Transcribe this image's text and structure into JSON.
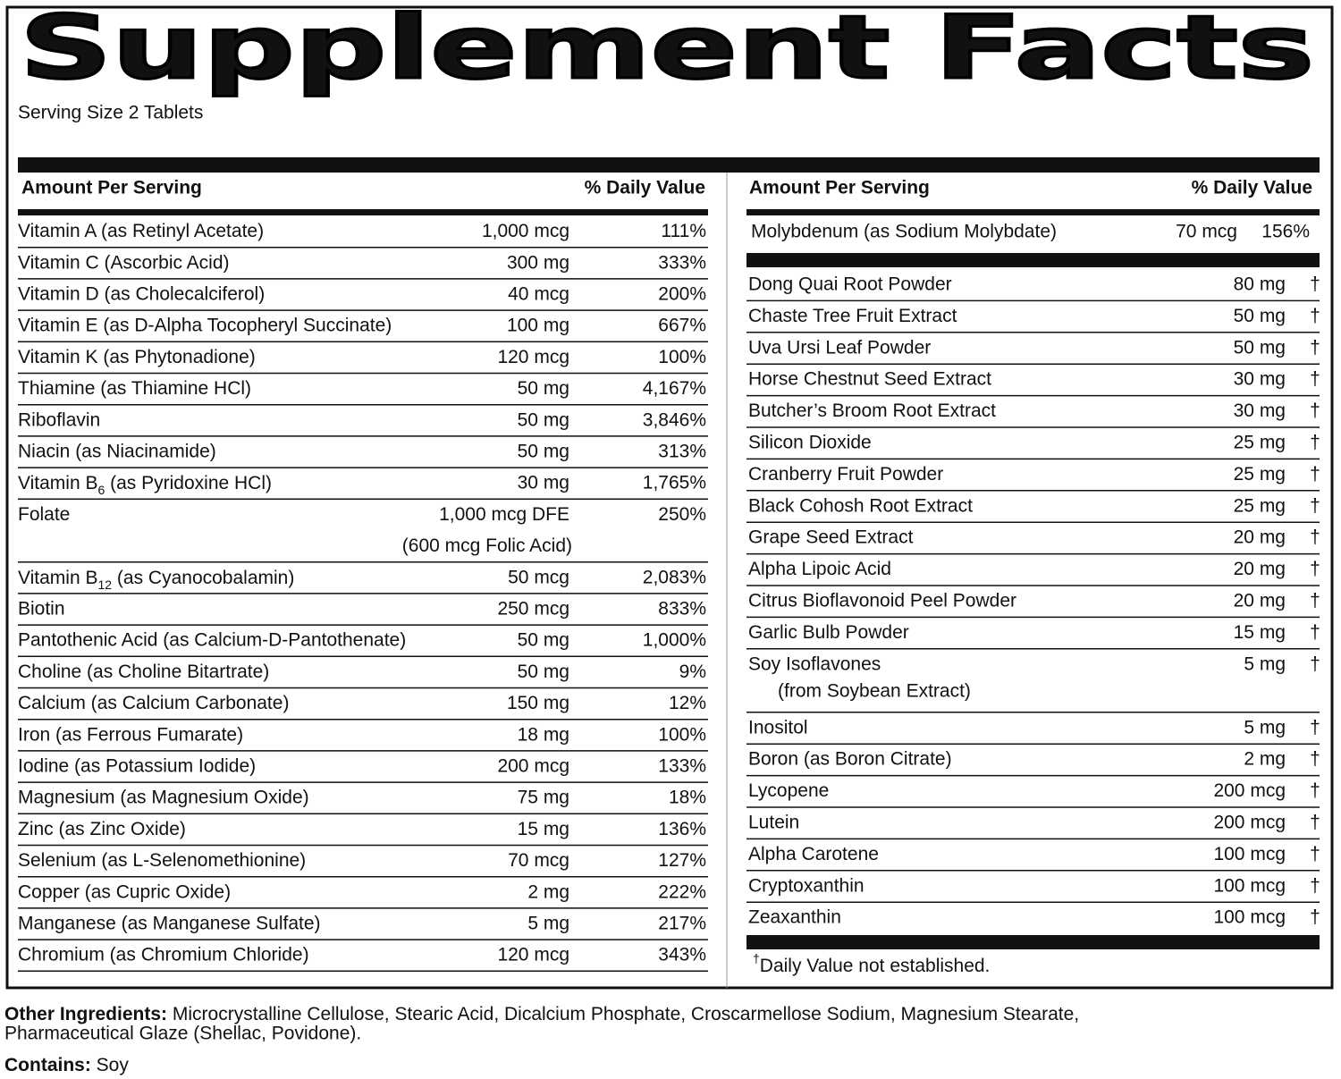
{
  "title": "Supplement Facts",
  "serving_size": "Serving Size 2 Tablets",
  "left": {
    "amount_header": "Amount Per Serving",
    "dv_header": "% Daily Value",
    "rows": [
      {
        "name": "Vitamin A (as Retinyl Acetate)",
        "amount": "1,000 mcg",
        "dv": "111%"
      },
      {
        "name": "Vitamin C (Ascorbic Acid)",
        "amount": "300 mg",
        "dv": "333%"
      },
      {
        "name": "Vitamin D (as Cholecalciferol)",
        "amount": "40 mcg",
        "dv": "200%"
      },
      {
        "name": "Vitamin E (as D-Alpha Tocopheryl Succinate)",
        "amount": "100 mg",
        "dv": "667%"
      },
      {
        "name": "Vitamin K (as Phytonadione)",
        "amount": "120 mcg",
        "dv": "100%"
      },
      {
        "name": "Thiamine (as Thiamine HCl)",
        "amount": "50 mg",
        "dv": "4,167%"
      },
      {
        "name": "Riboflavin",
        "amount": "50 mg",
        "dv": "3,846%"
      },
      {
        "name": "Niacin (as Niacinamide)",
        "amount": "50 mg",
        "dv": "313%"
      },
      {
        "name": [
          "Vitamin B",
          "6",
          " (as Pyridoxine HCl)"
        ],
        "amount": "30 mg",
        "dv": "1,765%"
      },
      {
        "name": "Folate",
        "amount": "1,000 mcg DFE",
        "dv": "250%",
        "note": "(600 mcg Folic Acid)"
      },
      {
        "name": [
          "Vitamin B",
          "12",
          " (as Cyanocobalamin)"
        ],
        "amount": "50 mcg",
        "dv": "2,083%"
      },
      {
        "name": "Biotin",
        "amount": "250 mcg",
        "dv": "833%"
      },
      {
        "name": "Pantothenic Acid (as Calcium-D-Pantothenate)",
        "amount": "50 mg",
        "dv": "1,000%"
      },
      {
        "name": "Choline (as Choline Bitartrate)",
        "amount": "50 mg",
        "dv": "9%"
      },
      {
        "name": "Calcium (as Calcium Carbonate)",
        "amount": "150 mg",
        "dv": "12%"
      },
      {
        "name": "Iron (as Ferrous Fumarate)",
        "amount": "18 mg",
        "dv": "100%"
      },
      {
        "name": "Iodine (as Potassium Iodide)",
        "amount": "200 mcg",
        "dv": "133%"
      },
      {
        "name": "Magnesium (as Magnesium Oxide)",
        "amount": "75 mg",
        "dv": "18%"
      },
      {
        "name": "Zinc (as Zinc Oxide)",
        "amount": "15 mg",
        "dv": "136%"
      },
      {
        "name": "Selenium (as L-Selenomethionine)",
        "amount": "70 mcg",
        "dv": "127%"
      },
      {
        "name": "Copper (as Cupric Oxide)",
        "amount": "2 mg",
        "dv": "222%"
      },
      {
        "name": "Manganese (as Manganese Sulfate)",
        "amount": "5 mg",
        "dv": "217%"
      },
      {
        "name": "Chromium (as Chromium Chloride)",
        "amount": "120 mcg",
        "dv": "343%"
      }
    ]
  },
  "right": {
    "amount_header": "Amount Per Serving",
    "dv_header": "% Daily Value",
    "top_rows": [
      {
        "name": "Molybdenum (as Sodium Molybdate)",
        "amount": "70 mcg",
        "dv": "156%"
      }
    ],
    "rows": [
      {
        "name": "Dong Quai Root Powder",
        "amount": "80 mg",
        "mark": "†"
      },
      {
        "name": "Chaste Tree Fruit Extract",
        "amount": "50 mg",
        "mark": "†"
      },
      {
        "name": "Uva Ursi Leaf Powder",
        "amount": "50 mg",
        "mark": "†"
      },
      {
        "name": "Horse Chestnut Seed Extract",
        "amount": "30 mg",
        "mark": "†"
      },
      {
        "name": "Butcher’s Broom Root Extract",
        "amount": "30 mg",
        "mark": "†"
      },
      {
        "name": "Silicon Dioxide",
        "amount": "25 mg",
        "mark": "†"
      },
      {
        "name": "Cranberry Fruit Powder",
        "amount": "25 mg",
        "mark": "†"
      },
      {
        "name": "Black Cohosh Root Extract",
        "amount": "25 mg",
        "mark": "†"
      },
      {
        "name": "Grape Seed Extract",
        "amount": "20 mg",
        "mark": "†"
      },
      {
        "name": "Alpha Lipoic Acid",
        "amount": "20 mg",
        "mark": "†"
      },
      {
        "name": "Citrus Bioflavonoid Peel Powder",
        "amount": "20 mg",
        "mark": "†"
      },
      {
        "name": "Garlic Bulb Powder",
        "amount": "15 mg",
        "mark": "†"
      },
      {
        "name": "Soy Isoflavones",
        "amount": "5 mg",
        "mark": "†",
        "note": "(from Soybean Extract)"
      },
      {
        "name": "Inositol",
        "amount": "5 mg",
        "mark": "†"
      },
      {
        "name": "Boron (as Boron Citrate)",
        "amount": "2 mg",
        "mark": "†"
      },
      {
        "name": "Lycopene",
        "amount": "200 mcg",
        "mark": "†"
      },
      {
        "name": "Lutein",
        "amount": "200 mcg",
        "mark": "†"
      },
      {
        "name": "Alpha Carotene",
        "amount": "100 mcg",
        "mark": "†"
      },
      {
        "name": "Cryptoxanthin",
        "amount": "100 mcg",
        "mark": "†"
      },
      {
        "name": "Zeaxanthin",
        "amount": "100 mcg",
        "mark": "†"
      }
    ],
    "footnote": [
      "†",
      "Daily Value not established."
    ]
  },
  "other_ingredients": {
    "label": "Other Ingredients:",
    "lines": [
      " Microcrystalline Cellulose, Stearic Acid, Dicalcium Phosphate, Croscarmellose Sodium, Magnesium Stearate,",
      "Pharmaceutical Glaze (Shellac, Povidone)."
    ]
  },
  "contains": {
    "label": "Contains:",
    "text": " Soy"
  }
}
